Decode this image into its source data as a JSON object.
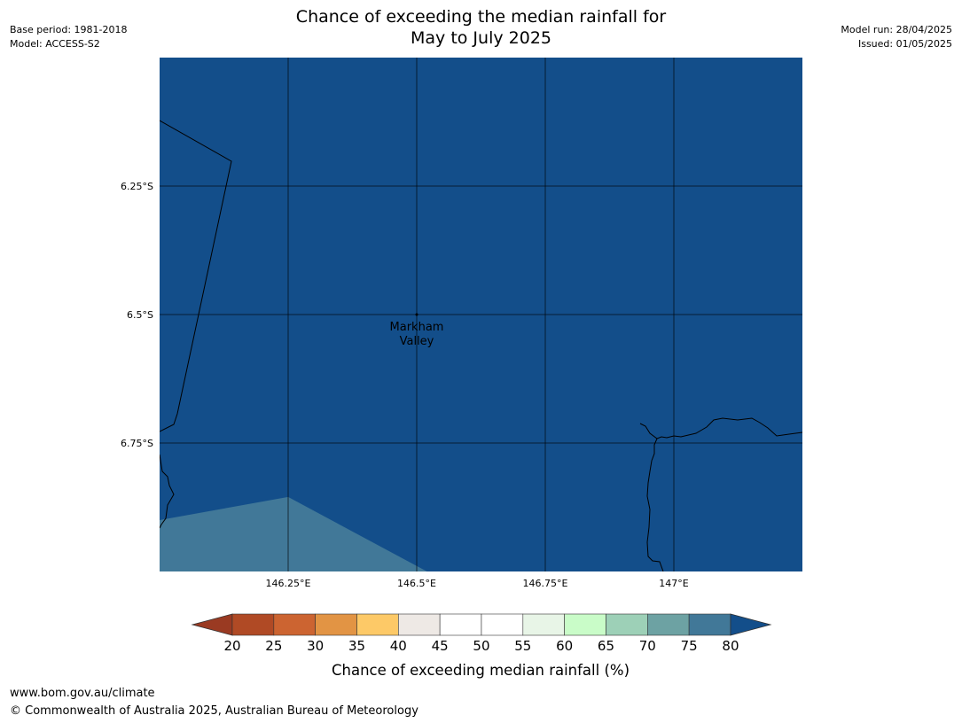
{
  "header": {
    "title_line1": "Chance of exceeding the median rainfall for",
    "title_line2": "May to July 2025",
    "base_period": "Base period: 1981-2018",
    "model": "Model: ACCESS-S2",
    "model_run": "Model run: 28/04/2025",
    "issued": "Issued: 01/05/2025"
  },
  "map": {
    "lon_range": [
      146.0,
      147.25
    ],
    "lat_range": [
      -7.0,
      -6.0
    ],
    "background_color": "#134e8a",
    "lat_ticks": [
      {
        "value": -6.25,
        "label": "6.25°S"
      },
      {
        "value": -6.5,
        "label": "6.5°S"
      },
      {
        "value": -6.75,
        "label": "6.75°S"
      }
    ],
    "lon_ticks": [
      {
        "value": 146.25,
        "label": "146.25°E"
      },
      {
        "value": 146.5,
        "label": "146.5°E"
      },
      {
        "value": 146.75,
        "label": "146.75°E"
      },
      {
        "value": 147.0,
        "label": "147°E"
      }
    ],
    "place": {
      "name_line1": "Markham",
      "name_line2": "Valley",
      "lon": 146.5,
      "lat": -6.5
    },
    "region_70_75": {
      "color": "#417898",
      "polygon": [
        [
          146.0,
          -6.9
        ],
        [
          146.25,
          -6.855
        ],
        [
          146.52,
          -7.0
        ],
        [
          146.0,
          -7.0
        ]
      ]
    },
    "boundary_color": "#000000"
  },
  "colorbar": {
    "title": "Chance of exceeding median rainfall (%)",
    "labels": [
      "20",
      "25",
      "30",
      "35",
      "40",
      "45",
      "50",
      "55",
      "60",
      "65",
      "70",
      "75",
      "80"
    ],
    "low_extend_color": "#9a3a22",
    "high_extend_color": "#134e8a",
    "segment_colors": [
      "#b04a25",
      "#cc6431",
      "#e29444",
      "#fdc967",
      "#eee9e5",
      "#ffffff",
      "#ffffff",
      "#e8f5e7",
      "#c9fcc8",
      "#9dd0b7",
      "#6da2a3",
      "#417898"
    ]
  },
  "footer": {
    "url": "www.bom.gov.au/climate",
    "copyright": "© Commonwealth of Australia 2025, Australian Bureau of Meteorology"
  }
}
